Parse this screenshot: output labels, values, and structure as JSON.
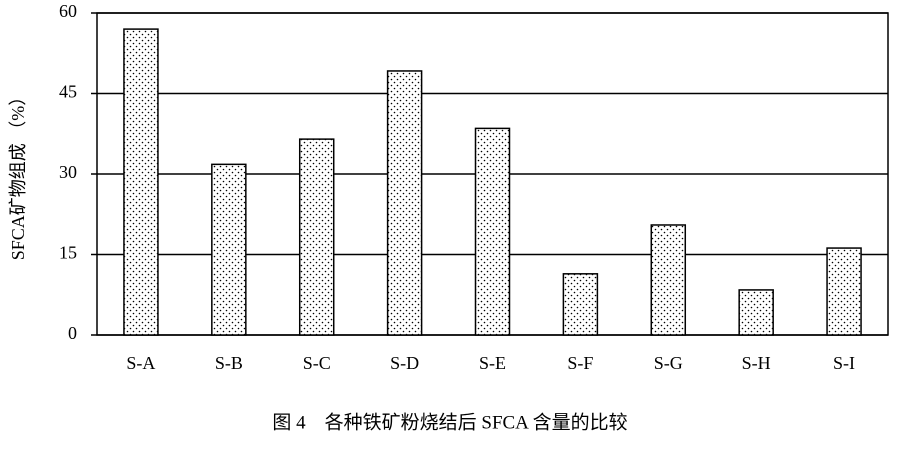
{
  "chart_data": {
    "type": "bar",
    "caption": "图 4　各种铁矿粉烧结后 SFCA 含量的比较",
    "y_label": "SFCA矿物组成 （%）",
    "categories": [
      "S-A",
      "S-B",
      "S-C",
      "S-D",
      "S-E",
      "S-F",
      "S-G",
      "S-H",
      "S-I"
    ],
    "values": [
      57.0,
      31.8,
      36.5,
      49.2,
      38.5,
      11.4,
      20.5,
      8.4,
      16.2
    ],
    "ylim": [
      0,
      60
    ],
    "yticks": [
      0,
      15,
      30,
      45,
      60
    ],
    "grid": true
  }
}
